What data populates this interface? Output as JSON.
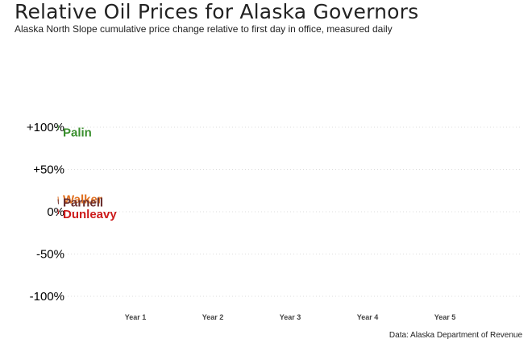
{
  "title": "Relative Oil Prices for Alaska Governors",
  "subtitle": "Alaska North Slope cumulative price change relative to first day in office, measured daily",
  "caption": "Data: Alaska Department of Revenue",
  "chart_data": {
    "type": "line",
    "title": "Relative Oil Prices for Alaska Governors",
    "xlabel": "",
    "ylabel": "",
    "x_tick_labels": [
      "Year 1",
      "Year 2",
      "Year 3",
      "Year 4",
      "Year 5"
    ],
    "x_tick_values": [
      1,
      2,
      3,
      4,
      5
    ],
    "xlim": [
      0,
      6
    ],
    "y_tick_labels": [
      "+100%",
      "+50%",
      "0%",
      "-50%",
      "-100%"
    ],
    "y_tick_values": [
      100,
      50,
      0,
      -50,
      -100
    ],
    "ylim": [
      -100,
      100
    ],
    "grid": "horizontal dotted",
    "series": [
      {
        "name": "Palin",
        "color": "#3a8f2e",
        "points": [
          [
            0,
            100
          ]
        ],
        "label_value": 94
      },
      {
        "name": "Walker",
        "color": "#e07020",
        "points": [
          [
            0,
            15
          ]
        ],
        "label_value": 15
      },
      {
        "name": "Parnell",
        "color": "#6a2f2f",
        "points": [
          [
            0,
            12
          ]
        ],
        "label_value": 11
      },
      {
        "name": "Dunleavy",
        "color": "#cc1a1a",
        "points": [
          [
            0,
            0
          ]
        ],
        "label_value": -3
      }
    ]
  }
}
